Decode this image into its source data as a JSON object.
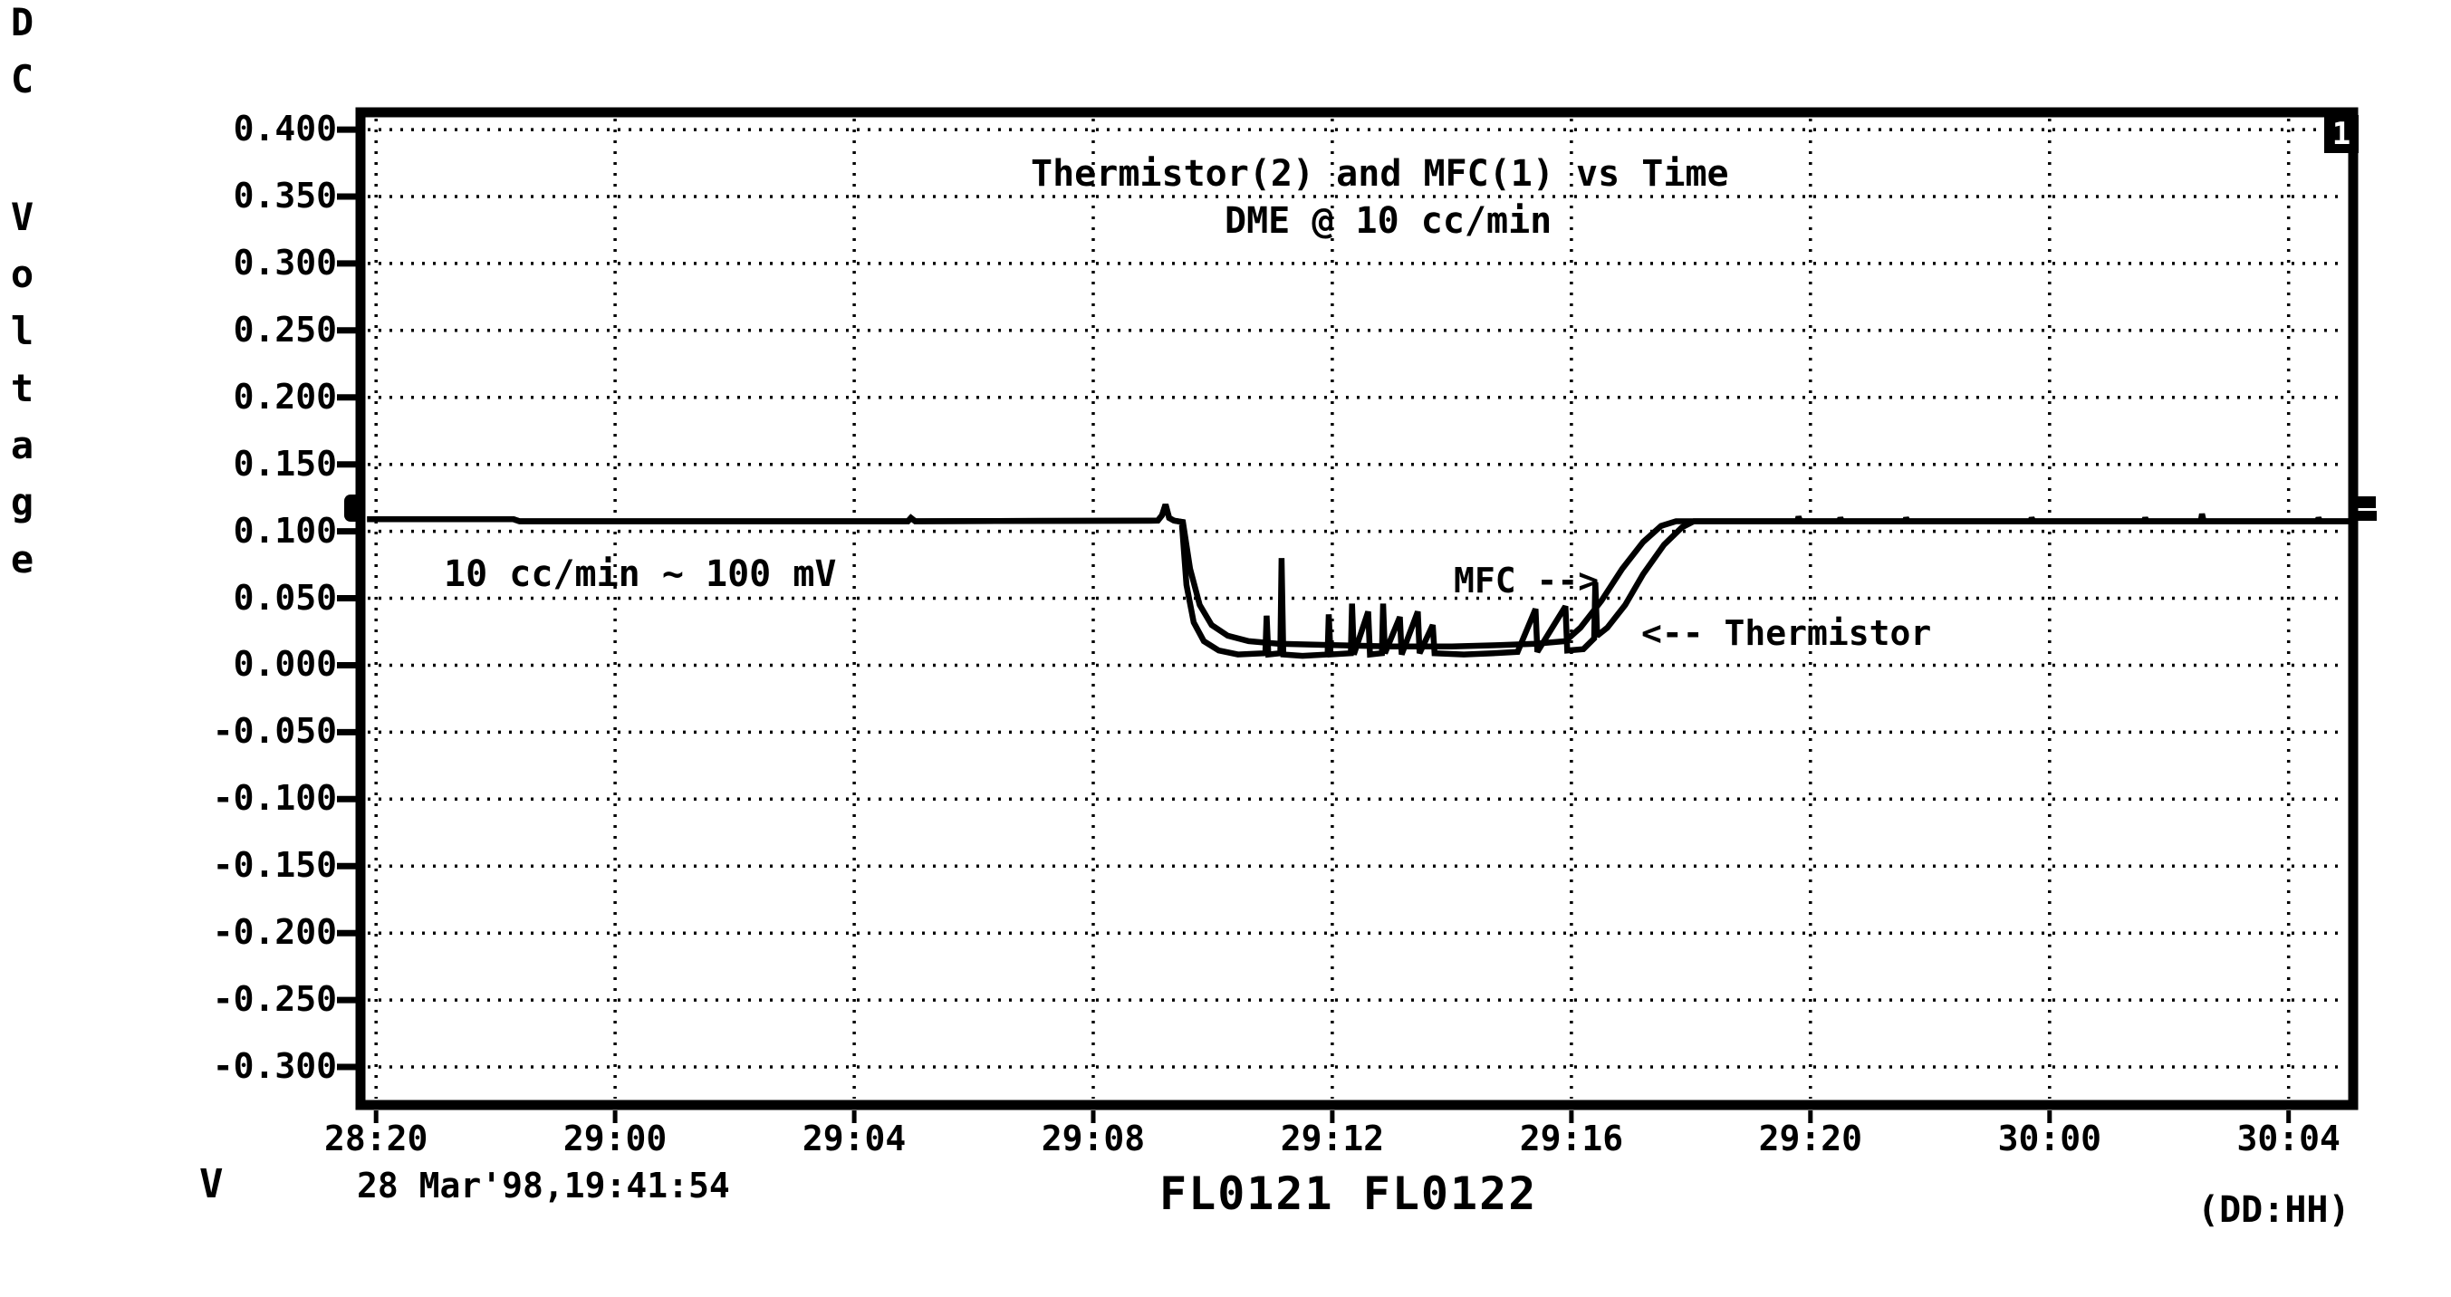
{
  "chart_data": {
    "type": "line",
    "title": "Thermistor(2) and MFC(1) vs Time",
    "subtitle": "DME @ 10 cc/min",
    "ylabel": "DC Voltage",
    "y_unit": "V",
    "x_unit": "(DD:HH)",
    "timestamp": "28 Mar'98,19:41:54",
    "dataset_ids": "FL0121 FL0122",
    "corner_badge": "1",
    "grid": "dotted",
    "legend": "none",
    "colors": {
      "ink": "#000000",
      "paper": "#ffffff"
    },
    "annotations": {
      "flow_note": "10 cc/min ~ 100 mV",
      "mfc_label": "MFC -->",
      "thermistor_label": "<-- Thermistor"
    },
    "x_value_unit": "hours since day 28 00:00 (ticks are DD:HH)",
    "xlim": [
      19.74,
      53.08
    ],
    "ylim": [
      -0.3284,
      0.4129
    ],
    "x_ticks": [
      {
        "label": "28:20",
        "h": 20
      },
      {
        "label": "29:00",
        "h": 24
      },
      {
        "label": "29:04",
        "h": 28
      },
      {
        "label": "29:08",
        "h": 32
      },
      {
        "label": "29:12",
        "h": 36
      },
      {
        "label": "29:16",
        "h": 40
      },
      {
        "label": "29:20",
        "h": 44
      },
      {
        "label": "30:00",
        "h": 48
      },
      {
        "label": "30:04",
        "h": 52
      }
    ],
    "y_ticks": [
      {
        "label": "0.400",
        "v": 0.4
      },
      {
        "label": "0.350",
        "v": 0.35
      },
      {
        "label": "0.300",
        "v": 0.3
      },
      {
        "label": "0.250",
        "v": 0.25
      },
      {
        "label": "0.200",
        "v": 0.2
      },
      {
        "label": "0.150",
        "v": 0.15
      },
      {
        "label": "0.100",
        "v": 0.1
      },
      {
        "label": "0.050",
        "v": 0.05
      },
      {
        "label": "0.000",
        "v": 0.0
      },
      {
        "label": "-0.050",
        "v": -0.05
      },
      {
        "label": "-0.100",
        "v": -0.1
      },
      {
        "label": "-0.150",
        "v": -0.15
      },
      {
        "label": "-0.200",
        "v": -0.2
      },
      {
        "label": "-0.250",
        "v": -0.25
      },
      {
        "label": "-0.300",
        "v": -0.3
      }
    ],
    "series": [
      {
        "name": "MFC(1)",
        "points": [
          [
            19.85,
            0.109
          ],
          [
            22.3,
            0.109
          ],
          [
            22.4,
            0.1075
          ],
          [
            28.9,
            0.1075
          ],
          [
            28.95,
            0.11
          ],
          [
            29.02,
            0.1075
          ],
          [
            33.08,
            0.108
          ],
          [
            33.15,
            0.112
          ],
          [
            33.21,
            0.12
          ],
          [
            33.27,
            0.11
          ],
          [
            33.35,
            0.108
          ],
          [
            33.5,
            0.107
          ],
          [
            33.62,
            0.072
          ],
          [
            33.78,
            0.045
          ],
          [
            33.98,
            0.03
          ],
          [
            34.25,
            0.022
          ],
          [
            34.6,
            0.018
          ],
          [
            35.1,
            0.016
          ],
          [
            36.0,
            0.015
          ],
          [
            37.0,
            0.014
          ],
          [
            38.0,
            0.014
          ],
          [
            38.8,
            0.015
          ],
          [
            39.4,
            0.016
          ],
          [
            39.9,
            0.018
          ],
          [
            40.15,
            0.028
          ],
          [
            40.5,
            0.048
          ],
          [
            40.85,
            0.072
          ],
          [
            41.2,
            0.092
          ],
          [
            41.5,
            0.104
          ],
          [
            41.75,
            0.1075
          ],
          [
            53.03,
            0.1075
          ]
        ]
      },
      {
        "name": "Thermistor(2)",
        "points": [
          [
            19.85,
            0.109
          ],
          [
            22.3,
            0.109
          ],
          [
            22.4,
            0.1075
          ],
          [
            28.9,
            0.1075
          ],
          [
            28.95,
            0.11
          ],
          [
            29.02,
            0.1075
          ],
          [
            33.08,
            0.108
          ],
          [
            33.15,
            0.112
          ],
          [
            33.21,
            0.12
          ],
          [
            33.27,
            0.11
          ],
          [
            33.35,
            0.108
          ],
          [
            33.48,
            0.107
          ],
          [
            33.56,
            0.06
          ],
          [
            33.68,
            0.032
          ],
          [
            33.85,
            0.018
          ],
          [
            34.1,
            0.011
          ],
          [
            34.42,
            0.008
          ],
          [
            34.88,
            0.009
          ],
          [
            34.9,
            0.037
          ],
          [
            34.93,
            0.008
          ],
          [
            35.13,
            0.009
          ],
          [
            35.15,
            0.08
          ],
          [
            35.18,
            0.008
          ],
          [
            35.5,
            0.007
          ],
          [
            35.92,
            0.008
          ],
          [
            35.94,
            0.038
          ],
          [
            35.97,
            0.008
          ],
          [
            36.31,
            0.009
          ],
          [
            36.33,
            0.046
          ],
          [
            36.36,
            0.008
          ],
          [
            36.6,
            0.04
          ],
          [
            36.63,
            0.008
          ],
          [
            36.83,
            0.009
          ],
          [
            36.85,
            0.046
          ],
          [
            36.88,
            0.009
          ],
          [
            37.13,
            0.036
          ],
          [
            37.16,
            0.008
          ],
          [
            37.43,
            0.04
          ],
          [
            37.46,
            0.009
          ],
          [
            37.68,
            0.03
          ],
          [
            37.71,
            0.009
          ],
          [
            38.2,
            0.008
          ],
          [
            38.7,
            0.009
          ],
          [
            39.1,
            0.01
          ],
          [
            39.4,
            0.042
          ],
          [
            39.43,
            0.01
          ],
          [
            39.9,
            0.044
          ],
          [
            39.93,
            0.011
          ],
          [
            40.2,
            0.012
          ],
          [
            40.38,
            0.02
          ],
          [
            40.4,
            0.062
          ],
          [
            40.43,
            0.022
          ],
          [
            40.6,
            0.028
          ],
          [
            40.9,
            0.045
          ],
          [
            41.2,
            0.068
          ],
          [
            41.55,
            0.09
          ],
          [
            41.85,
            0.103
          ],
          [
            42.05,
            0.1075
          ],
          [
            43.78,
            0.1075
          ],
          [
            43.8,
            0.111
          ],
          [
            43.83,
            0.1075
          ],
          [
            44.48,
            0.1075
          ],
          [
            44.5,
            0.11
          ],
          [
            44.53,
            0.1075
          ],
          [
            45.58,
            0.1075
          ],
          [
            45.6,
            0.11
          ],
          [
            45.63,
            0.1075
          ],
          [
            47.68,
            0.1075
          ],
          [
            47.7,
            0.11
          ],
          [
            47.73,
            0.1075
          ],
          [
            49.58,
            0.1075
          ],
          [
            49.6,
            0.11
          ],
          [
            49.63,
            0.1075
          ],
          [
            50.53,
            0.1075
          ],
          [
            50.55,
            0.113
          ],
          [
            50.58,
            0.1075
          ],
          [
            52.48,
            0.1075
          ],
          [
            52.5,
            0.11
          ],
          [
            52.53,
            0.1075
          ],
          [
            53.03,
            0.1075
          ]
        ]
      }
    ]
  }
}
